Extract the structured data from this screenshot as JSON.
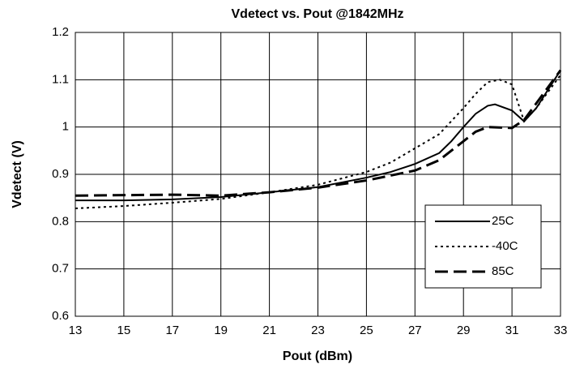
{
  "chart_data": {
    "type": "line",
    "title": "Vdetect vs. Pout @1842MHz",
    "x_label": "Pout (dBm)",
    "y_label": "Vdetect (V)",
    "xlim": [
      13,
      33
    ],
    "xticks": [
      13,
      15,
      17,
      19,
      21,
      23,
      25,
      27,
      29,
      31,
      33
    ],
    "ylim": [
      0.6,
      1.2
    ],
    "yticks": [
      0.6,
      0.7,
      0.8,
      0.9,
      1,
      1.1,
      1.2
    ],
    "grid": true,
    "legend": "lower right",
    "series": [
      {
        "name": "25C",
        "color": "#000000",
        "style": "solid",
        "x": [
          13,
          15,
          17,
          19,
          21,
          23,
          25,
          26,
          27,
          28,
          28.5,
          29,
          29.5,
          30,
          30.3,
          31,
          31.5,
          32,
          33
        ],
        "values": [
          0.845,
          0.845,
          0.847,
          0.852,
          0.862,
          0.873,
          0.893,
          0.905,
          0.922,
          0.945,
          0.97,
          1.0,
          1.028,
          1.045,
          1.048,
          1.035,
          1.012,
          1.04,
          1.12
        ]
      },
      {
        "name": "-40C",
        "color": "#000000",
        "style": "dotted",
        "x": [
          13,
          15,
          17,
          19,
          21,
          23,
          25,
          26,
          27,
          28,
          29,
          29.5,
          30,
          30.5,
          31,
          31.5,
          32,
          33
        ],
        "values": [
          0.828,
          0.833,
          0.84,
          0.848,
          0.862,
          0.878,
          0.905,
          0.925,
          0.955,
          0.985,
          1.04,
          1.07,
          1.095,
          1.1,
          1.09,
          1.012,
          1.04,
          1.11
        ]
      },
      {
        "name": "85C",
        "color": "#000000",
        "style": "dashed",
        "x": [
          13,
          15,
          17,
          19,
          21,
          23,
          25,
          27,
          28,
          29,
          29.5,
          30,
          31,
          31.5,
          32,
          33
        ],
        "values": [
          0.855,
          0.856,
          0.857,
          0.855,
          0.862,
          0.872,
          0.887,
          0.908,
          0.93,
          0.97,
          0.99,
          1.0,
          0.998,
          1.015,
          1.05,
          1.12
        ]
      }
    ]
  }
}
